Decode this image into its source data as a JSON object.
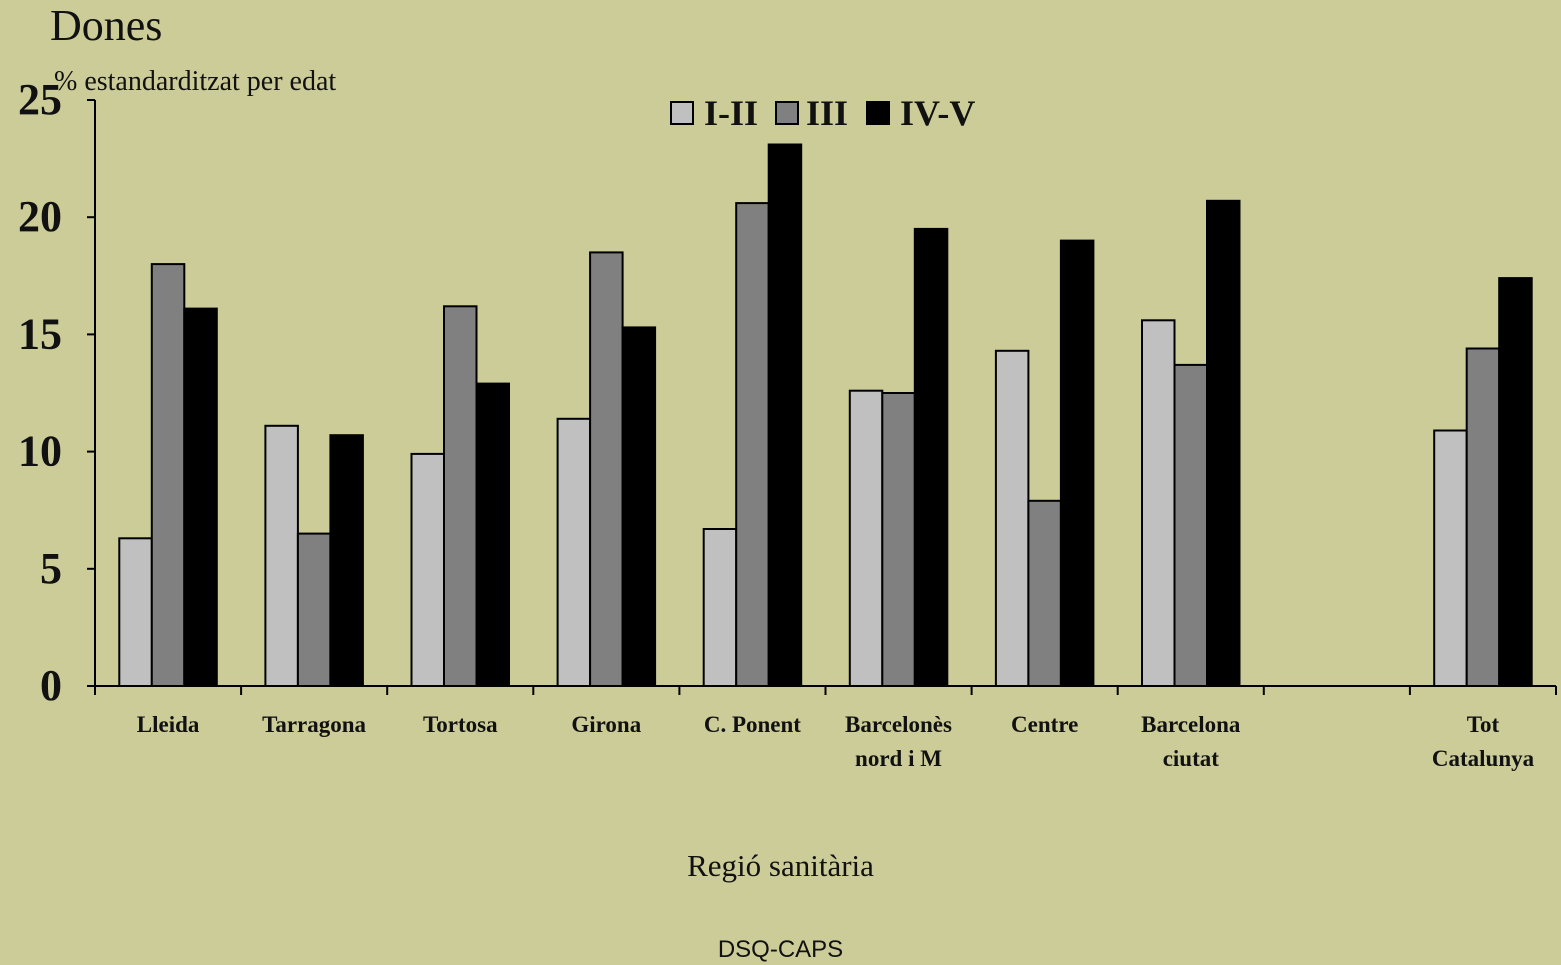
{
  "chart_data": {
    "type": "bar",
    "title": "Dones",
    "ylabel": "% estandarditzat per edat",
    "xlabel": "Regió sanitària",
    "footer": "DSQ-CAPS",
    "ylim": [
      0,
      25
    ],
    "yticks": [
      0,
      5,
      10,
      15,
      20,
      25
    ],
    "grid": false,
    "legend_position": "top-center",
    "categories": [
      [
        "Lleida"
      ],
      [
        "Tarragona"
      ],
      [
        "Tortosa"
      ],
      [
        "Girona"
      ],
      [
        "C. Ponent"
      ],
      [
        "Barcelonès",
        "nord i M"
      ],
      [
        "Centre"
      ],
      [
        "Barcelona",
        "ciutat"
      ],
      [
        ""
      ],
      [
        "Tot",
        "Catalunya"
      ]
    ],
    "series": [
      {
        "name": "I-II",
        "color": "#c0c0c0",
        "values": [
          6.3,
          11.1,
          9.9,
          11.4,
          6.7,
          12.6,
          14.3,
          15.6,
          null,
          10.9
        ]
      },
      {
        "name": "III",
        "color": "#808080",
        "values": [
          18.0,
          6.5,
          16.2,
          18.5,
          20.6,
          12.5,
          7.9,
          13.7,
          null,
          14.4
        ]
      },
      {
        "name": "IV-V",
        "color": "#000000",
        "values": [
          16.1,
          10.7,
          12.9,
          15.3,
          23.1,
          19.5,
          19.0,
          20.7,
          null,
          17.4
        ]
      }
    ]
  }
}
